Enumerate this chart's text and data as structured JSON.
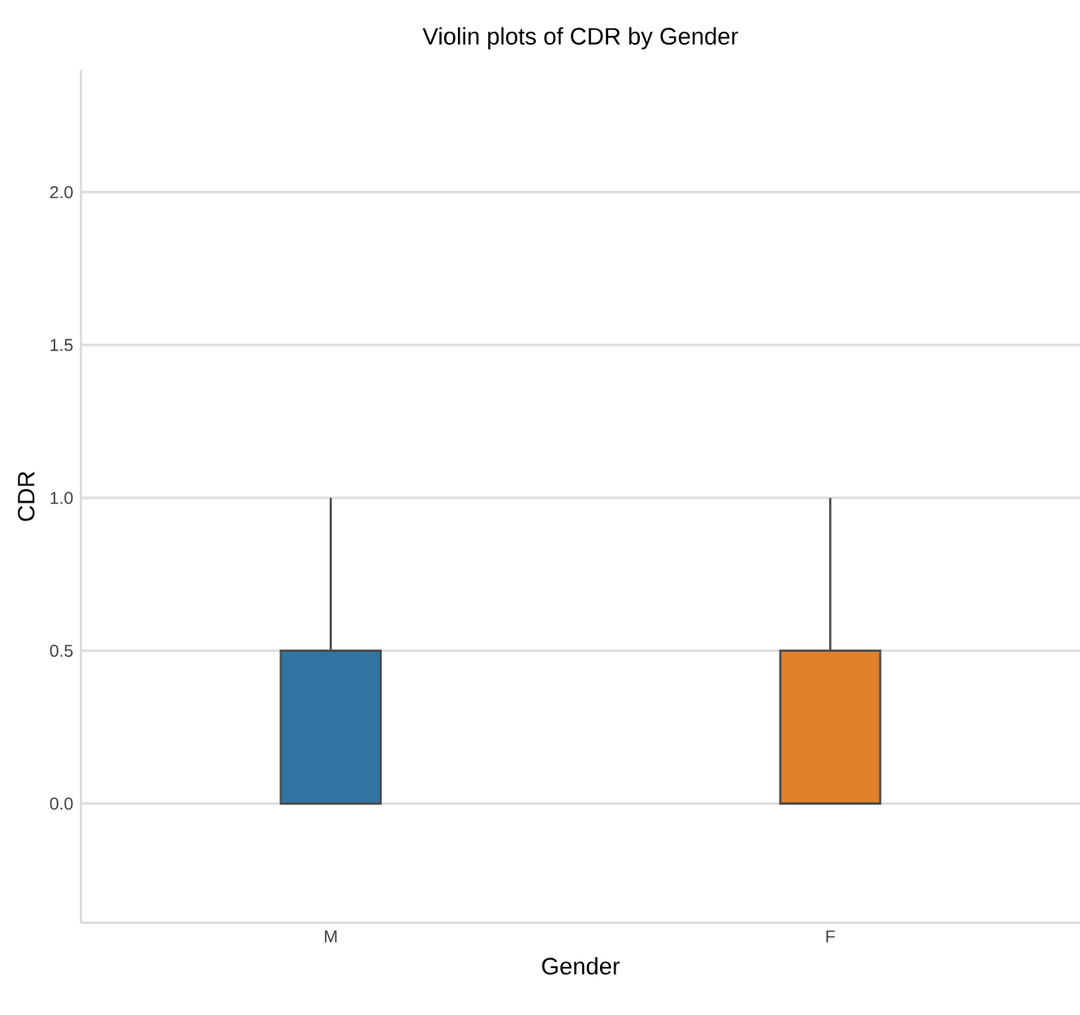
{
  "chart_data": {
    "type": "box",
    "title": "Violin plots of CDR by Gender",
    "xlabel": "Gender",
    "ylabel": "CDR",
    "categories": [
      "M",
      "F"
    ],
    "colors": [
      "#3274a1",
      "#e1812c"
    ],
    "boxes": [
      {
        "low": 0,
        "q1": 0,
        "median": 0.5,
        "q3": 0.5,
        "high": 1.0
      },
      {
        "low": 0,
        "q1": 0,
        "median": 0,
        "q3": 0.5,
        "high": 1.0
      }
    ],
    "ylim": [
      -0.39,
      2.4
    ],
    "yticks": [
      {
        "value": 0,
        "label": "0.0"
      },
      {
        "value": 0.5,
        "label": "0.5"
      },
      {
        "value": 1,
        "label": "1.0"
      },
      {
        "value": 1.5,
        "label": "1.5"
      },
      {
        "value": 2,
        "label": "2.0"
      }
    ],
    "grid": "y"
  }
}
